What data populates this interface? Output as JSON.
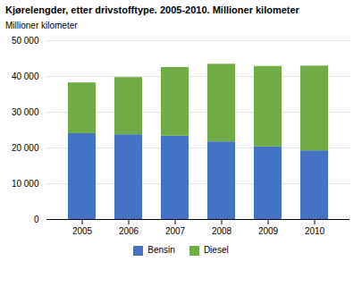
{
  "chart_data": {
    "type": "bar",
    "stacked": true,
    "title": "Kjørelengder, etter drivstofftype. 2005-2010. Millioner kilometer",
    "ylabel": "Millioner kilometer",
    "categories": [
      "2005",
      "2006",
      "2007",
      "2008",
      "2009",
      "2010"
    ],
    "series": [
      {
        "name": "Bensin",
        "color": "#4472c4",
        "values": [
          24000,
          23700,
          23300,
          21700,
          20300,
          19200
        ]
      },
      {
        "name": "Diesel",
        "color": "#70ad47",
        "values": [
          14200,
          16000,
          19200,
          21700,
          22500,
          23700
        ]
      }
    ],
    "ylim": [
      0,
      50000
    ],
    "yticks": [
      0,
      {
        "value": 10000,
        "label": "10 000"
      },
      {
        "value": 20000,
        "label": "20 000"
      },
      {
        "value": 30000,
        "label": "30 000"
      },
      {
        "value": 40000,
        "label": "40 000"
      },
      {
        "value": 50000,
        "label": "50 000"
      }
    ],
    "grid": true,
    "legend": "bottom"
  }
}
